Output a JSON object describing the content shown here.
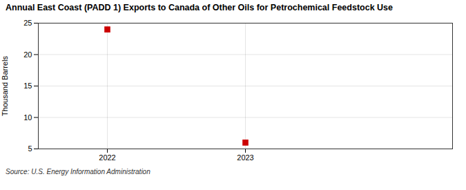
{
  "chart_data": {
    "type": "scatter",
    "title": "Annual East Coast (PADD 1) Exports to Canada of Other Oils for Petrochemical Feedstock Use",
    "ylabel": "Thousand Barrels",
    "source": "Source: U.S. Energy Information Administration",
    "x": [
      2022,
      2023
    ],
    "values": [
      24,
      6
    ],
    "color": "#cc0000",
    "marker": "square",
    "xlim": [
      2021.5,
      2024.5
    ],
    "xticks": [
      2022,
      2023
    ],
    "ylim": [
      5,
      25
    ],
    "yticks": [
      5,
      10,
      15,
      20,
      25
    ],
    "grid": true
  }
}
